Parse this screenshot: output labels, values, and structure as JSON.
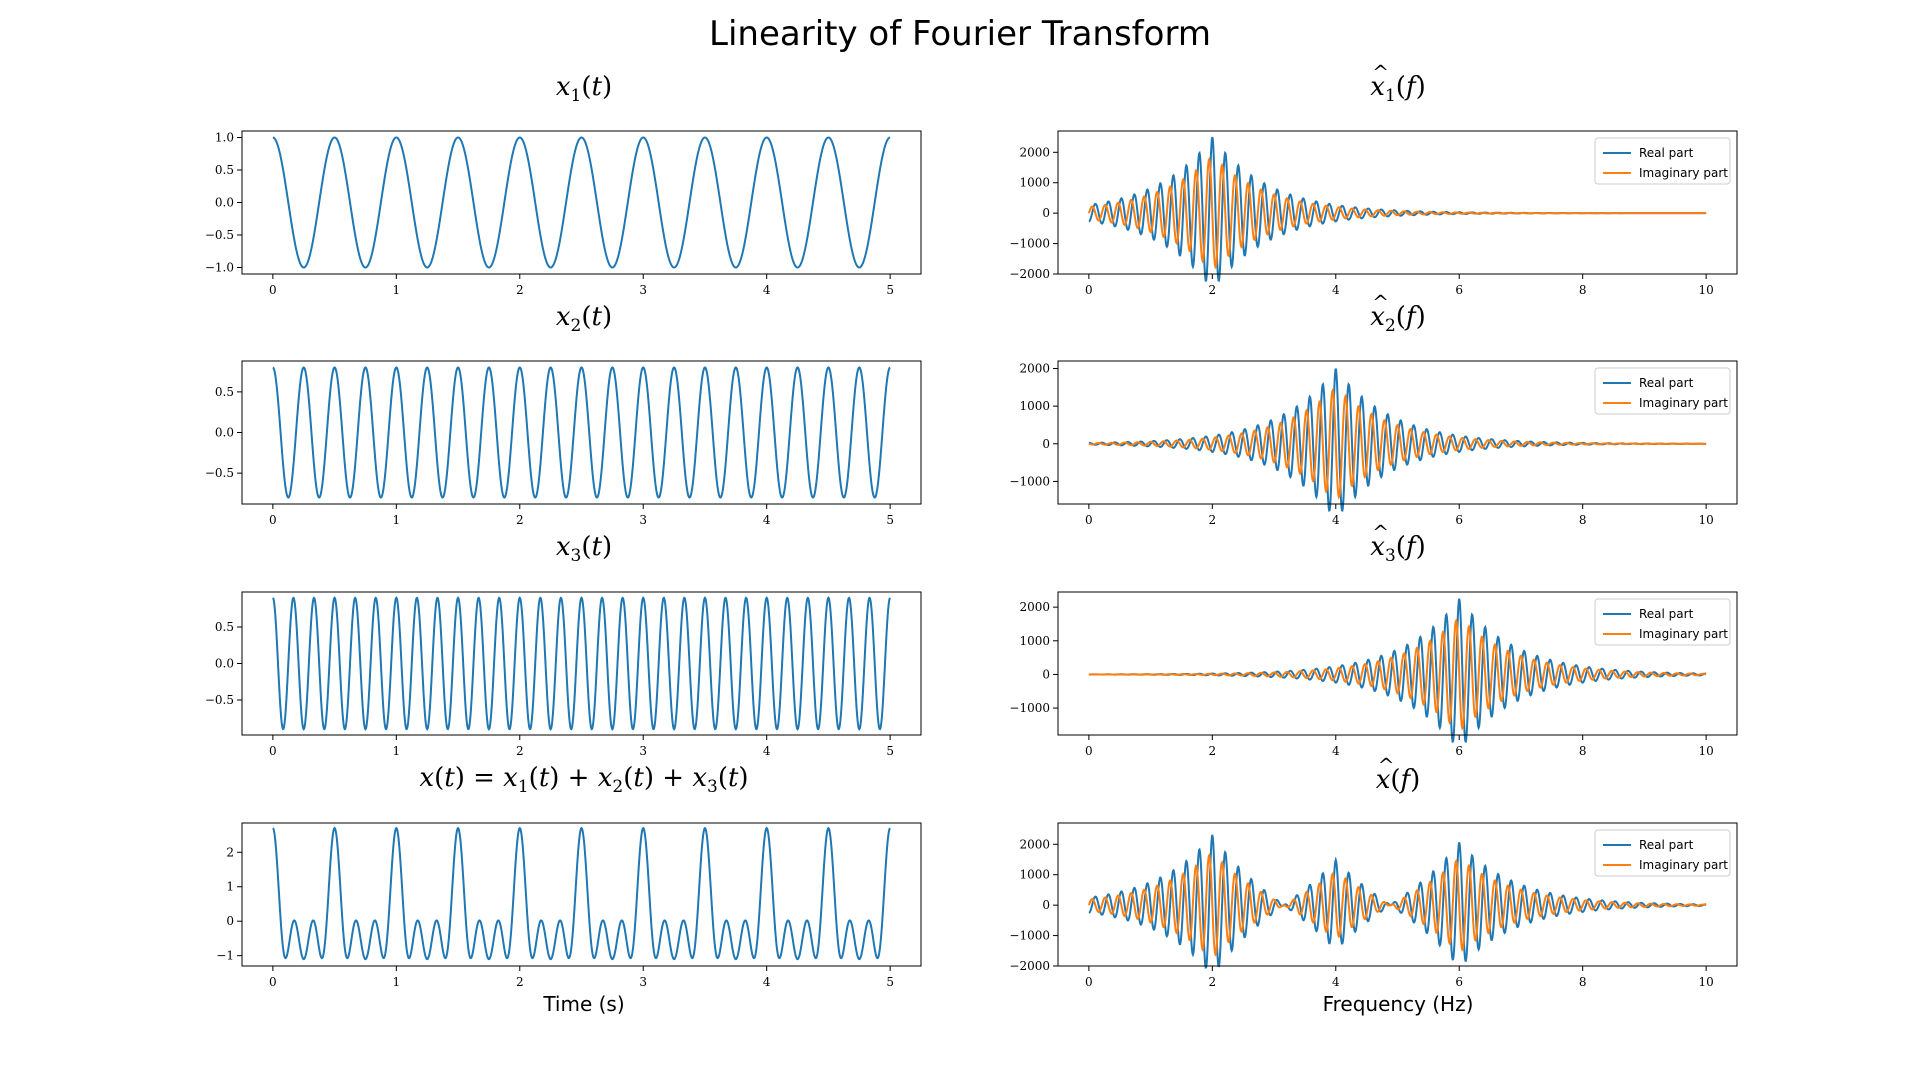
{
  "figure": {
    "suptitle": "Linearity of Fourier Transform",
    "time_xlabel": "Time (s)",
    "freq_xlabel": "Frequency (Hz)"
  },
  "colors": {
    "real": "#1f77b4",
    "imag": "#ff7f0e"
  },
  "chart_data": [
    {
      "type": "line",
      "title": "x1(t)",
      "x": {
        "start": 0,
        "end": 5
      },
      "series": [
        {
          "formula": "cos(2*pi*2*t)",
          "color": "#1f77b4"
        }
      ],
      "xlim": [
        -0.25,
        5.25
      ],
      "ylim": [
        -1.1,
        1.1
      ],
      "xticks": [
        0,
        1,
        2,
        3,
        4,
        5
      ],
      "yticks": [
        1.0,
        0.5,
        0.0,
        -0.5,
        -1.0
      ],
      "ytick_labels": [
        "1.0",
        "0.5",
        "0.0",
        "−0.5",
        "−1.0"
      ]
    },
    {
      "type": "line",
      "title": "x̂1(f)",
      "x": {
        "start": 0,
        "end": 10
      },
      "series": [
        {
          "name": "Real part",
          "color": "#1f77b4",
          "peaks": [
            {
              "f": 2,
              "amplitude": 2500
            }
          ]
        },
        {
          "name": "Imaginary part",
          "color": "#ff7f0e",
          "peaks": [
            {
              "f": 2,
              "amplitude": 2500
            }
          ]
        }
      ],
      "xlim": [
        -0.5,
        10.5
      ],
      "ylim": [
        -2000,
        2700
      ],
      "xticks": [
        0,
        2,
        4,
        6,
        8,
        10
      ],
      "yticks": [
        2000,
        1000,
        0,
        -1000,
        -2000
      ],
      "ytick_labels": [
        "2000",
        "1000",
        "0",
        "−1000",
        "−2000"
      ],
      "legend": "top-right"
    },
    {
      "type": "line",
      "title": "x2(t)",
      "x": {
        "start": 0,
        "end": 5
      },
      "series": [
        {
          "formula": "0.8*cos(2*pi*4*t)",
          "color": "#1f77b4"
        }
      ],
      "xlim": [
        -0.25,
        5.25
      ],
      "ylim": [
        -0.88,
        0.88
      ],
      "xticks": [
        0,
        1,
        2,
        3,
        4,
        5
      ],
      "yticks": [
        0.5,
        0.0,
        -0.5
      ],
      "ytick_labels": [
        "0.5",
        "0.0",
        "−0.5"
      ]
    },
    {
      "type": "line",
      "title": "x̂2(f)",
      "x": {
        "start": 0,
        "end": 10
      },
      "series": [
        {
          "name": "Real part",
          "color": "#1f77b4",
          "peaks": [
            {
              "f": 4,
              "amplitude": 2000
            }
          ]
        },
        {
          "name": "Imaginary part",
          "color": "#ff7f0e",
          "peaks": [
            {
              "f": 4,
              "amplitude": 2000
            }
          ]
        }
      ],
      "xlim": [
        -0.5,
        10.5
      ],
      "ylim": [
        -1600,
        2200
      ],
      "xticks": [
        0,
        2,
        4,
        6,
        8,
        10
      ],
      "yticks": [
        2000,
        1000,
        0,
        -1000
      ],
      "ytick_labels": [
        "2000",
        "1000",
        "0",
        "−1000"
      ],
      "legend": "top-right"
    },
    {
      "type": "line",
      "title": "x3(t)",
      "x": {
        "start": 0,
        "end": 5
      },
      "series": [
        {
          "formula": "0.9*cos(2*pi*6*t)",
          "color": "#1f77b4"
        }
      ],
      "xlim": [
        -0.25,
        5.25
      ],
      "ylim": [
        -0.98,
        0.98
      ],
      "xticks": [
        0,
        1,
        2,
        3,
        4,
        5
      ],
      "yticks": [
        0.5,
        0.0,
        -0.5
      ],
      "ytick_labels": [
        "0.5",
        "0.0",
        "−0.5"
      ]
    },
    {
      "type": "line",
      "title": "x̂3(f)",
      "x": {
        "start": 0,
        "end": 10
      },
      "series": [
        {
          "name": "Real part",
          "color": "#1f77b4",
          "peaks": [
            {
              "f": 6,
              "amplitude": 2250
            }
          ]
        },
        {
          "name": "Imaginary part",
          "color": "#ff7f0e",
          "peaks": [
            {
              "f": 6,
              "amplitude": 2250
            }
          ]
        }
      ],
      "xlim": [
        -0.5,
        10.5
      ],
      "ylim": [
        -1800,
        2450
      ],
      "xticks": [
        0,
        2,
        4,
        6,
        8,
        10
      ],
      "yticks": [
        2000,
        1000,
        0,
        -1000
      ],
      "ytick_labels": [
        "2000",
        "1000",
        "0",
        "−1000"
      ],
      "legend": "top-right"
    },
    {
      "type": "line",
      "title": "x(t) = x1(t) + x2(t) + x3(t)",
      "x": {
        "start": 0,
        "end": 5
      },
      "series": [
        {
          "formula": "cos(2*pi*2*t) + 0.8*cos(2*pi*4*t) + 0.9*cos(2*pi*6*t)",
          "color": "#1f77b4"
        }
      ],
      "xlim": [
        -0.25,
        5.25
      ],
      "ylim": [
        -1.3,
        2.85
      ],
      "xticks": [
        0,
        1,
        2,
        3,
        4,
        5
      ],
      "yticks": [
        2,
        1,
        0,
        -1
      ],
      "ytick_labels": [
        "2",
        "1",
        "0",
        "−1"
      ]
    },
    {
      "type": "line",
      "title": "x̂(f)",
      "x": {
        "start": 0,
        "end": 10
      },
      "series": [
        {
          "name": "Real part",
          "color": "#1f77b4",
          "peaks": [
            {
              "f": 2,
              "amplitude": 2500
            },
            {
              "f": 4,
              "amplitude": 2000
            },
            {
              "f": 6,
              "amplitude": 2250
            }
          ]
        },
        {
          "name": "Imaginary part",
          "color": "#ff7f0e",
          "peaks": [
            {
              "f": 2,
              "amplitude": 2500
            },
            {
              "f": 4,
              "amplitude": 2000
            },
            {
              "f": 6,
              "amplitude": 2250
            }
          ]
        }
      ],
      "xlim": [
        -0.5,
        10.5
      ],
      "ylim": [
        -2000,
        2700
      ],
      "xticks": [
        0,
        2,
        4,
        6,
        8,
        10
      ],
      "yticks": [
        2000,
        1000,
        0,
        -1000,
        -2000
      ],
      "ytick_labels": [
        "2000",
        "1000",
        "0",
        "−1000",
        "−2000"
      ],
      "legend": "top-right"
    }
  ]
}
